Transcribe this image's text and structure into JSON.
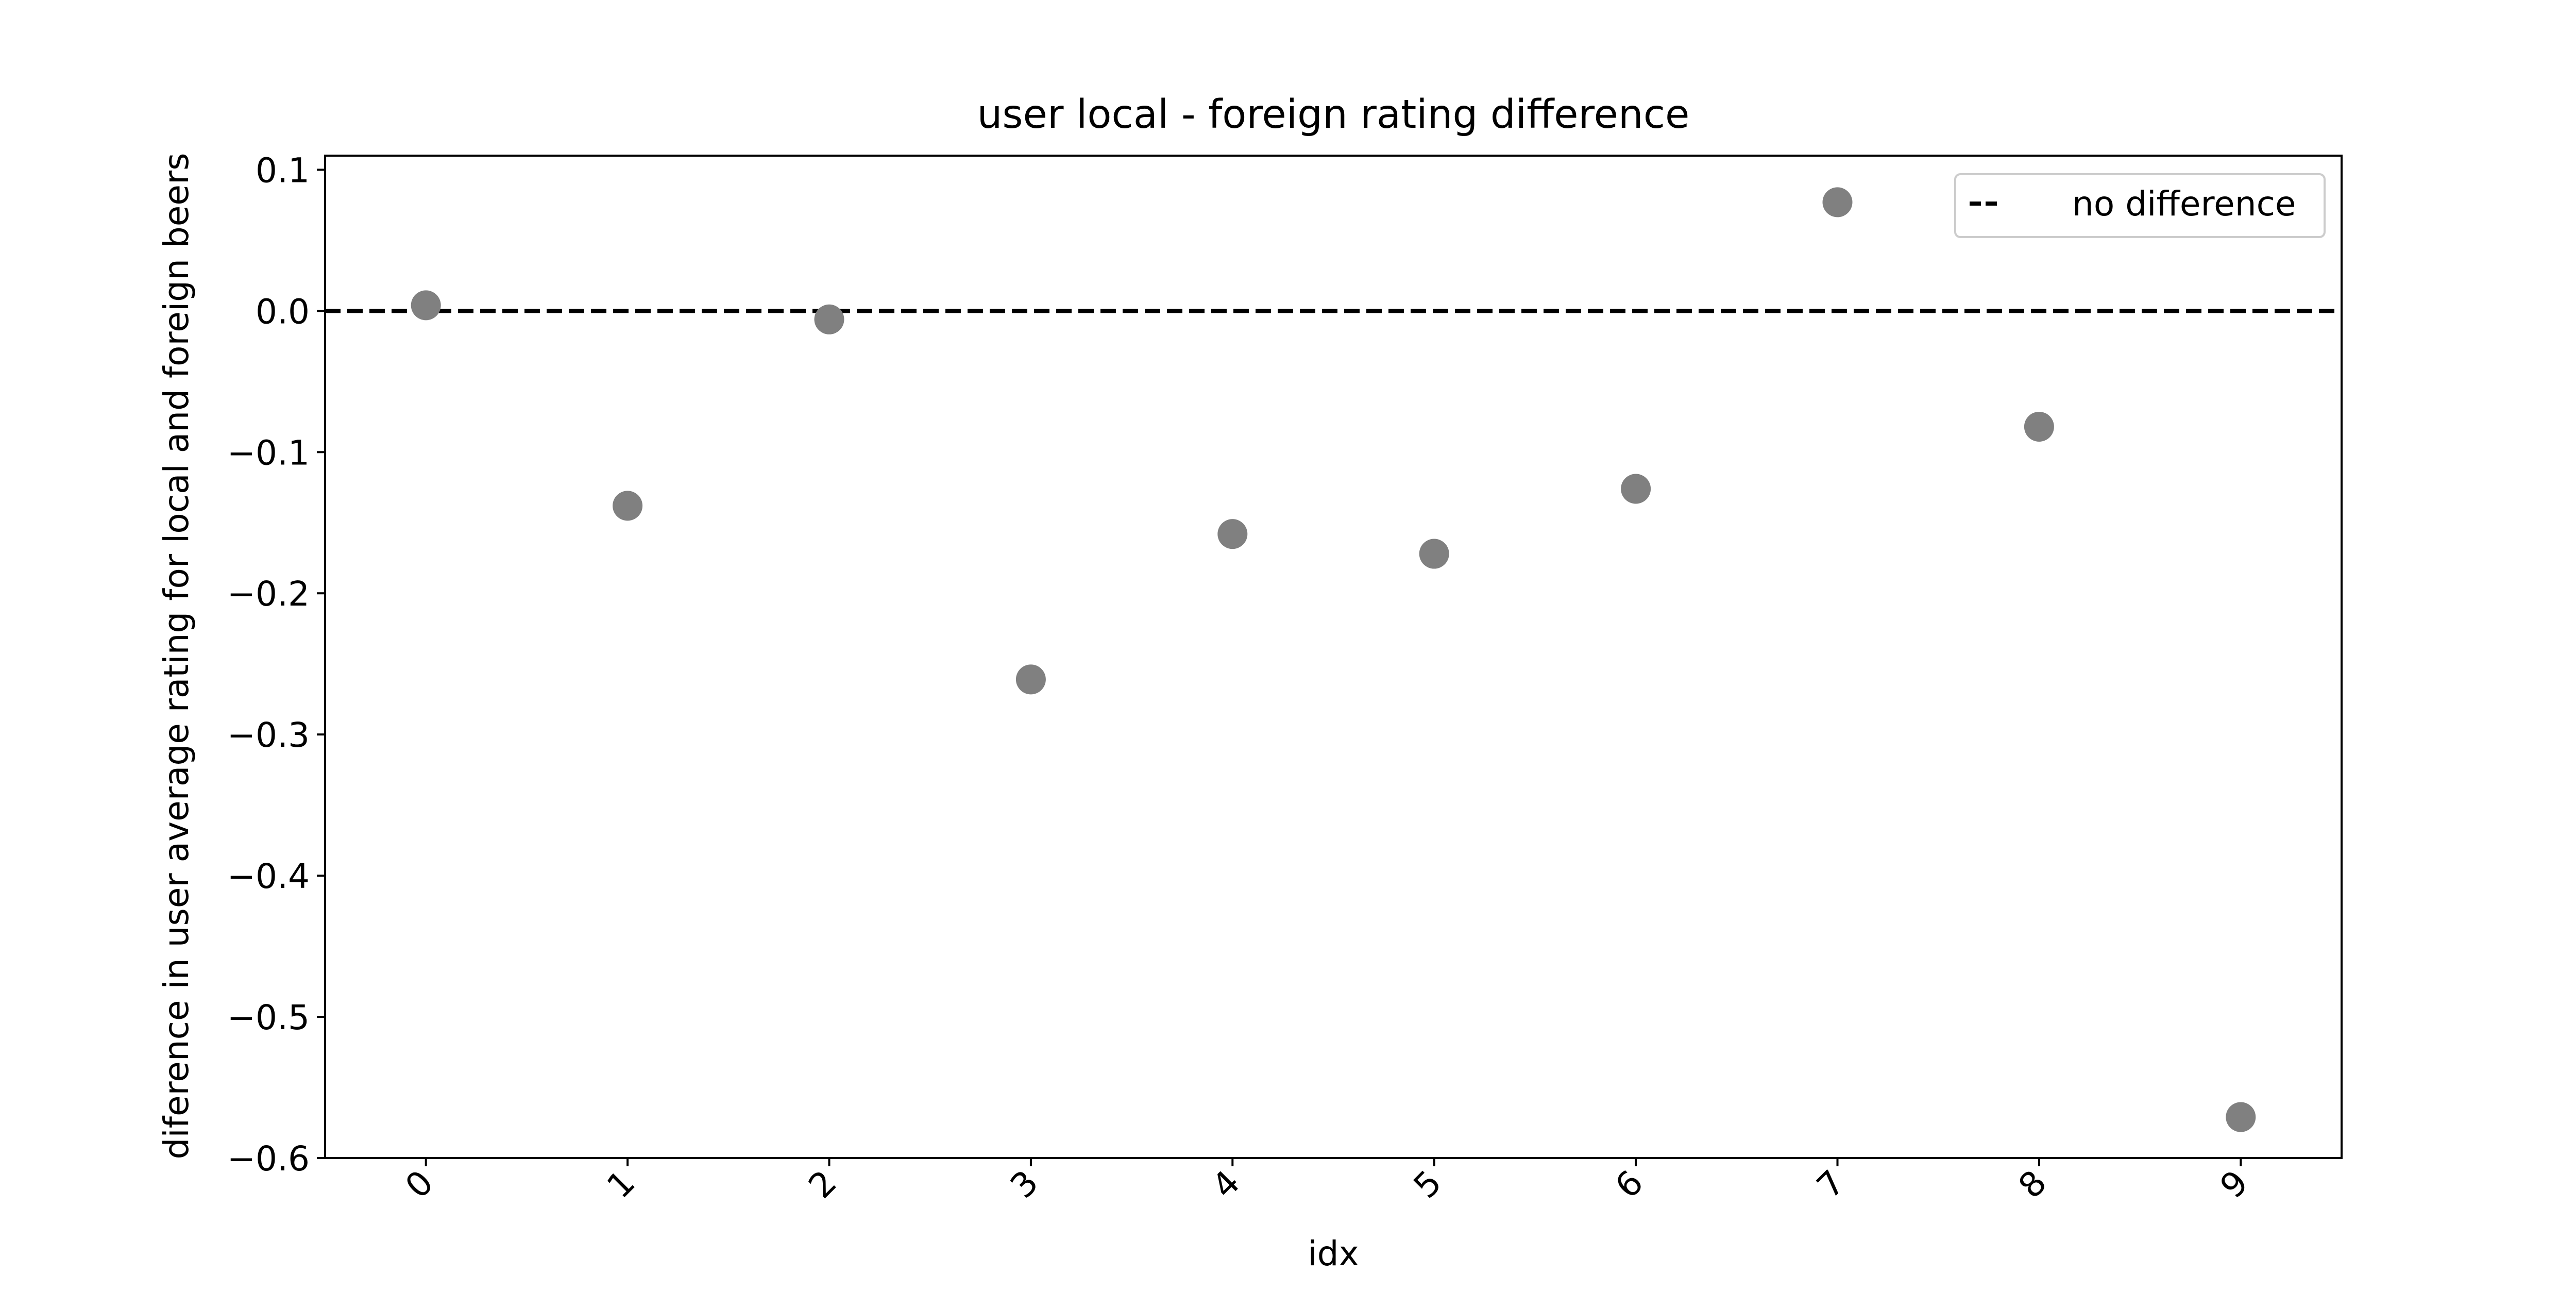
{
  "chart_data": {
    "type": "scatter",
    "title": "user local - foreign rating difference",
    "xlabel": "idx",
    "ylabel": "diference in user average rating for local and foreign beers",
    "x": [
      0,
      1,
      2,
      3,
      4,
      5,
      6,
      7,
      8,
      9
    ],
    "x_tick_labels": [
      "0",
      "1",
      "2",
      "3",
      "4",
      "5",
      "6",
      "7",
      "8",
      "9"
    ],
    "x_tick_rotation": "45 degrees",
    "series": [
      {
        "values": [
          0.004,
          -0.138,
          -0.006,
          -0.261,
          -0.158,
          -0.172,
          -0.126,
          0.077,
          -0.082,
          -0.571
        ],
        "color": "#808080"
      }
    ],
    "reference_line": {
      "value": 0.0,
      "style": "dashed",
      "color": "#000000",
      "label": "no difference"
    },
    "y_ticks": [
      0.1,
      0.0,
      -0.1,
      -0.2,
      -0.3,
      -0.4,
      -0.5,
      -0.6
    ],
    "y_tick_labels": [
      "0.1",
      "0.0",
      "−0.1",
      "−0.2",
      "−0.3",
      "−0.4",
      "−0.5",
      "−0.6"
    ],
    "xlim": [
      -0.5,
      9.5
    ],
    "ylim": [
      -0.6,
      0.11
    ],
    "grid": false,
    "legend": {
      "placement": "top-right",
      "entries": [
        "no difference"
      ]
    }
  }
}
